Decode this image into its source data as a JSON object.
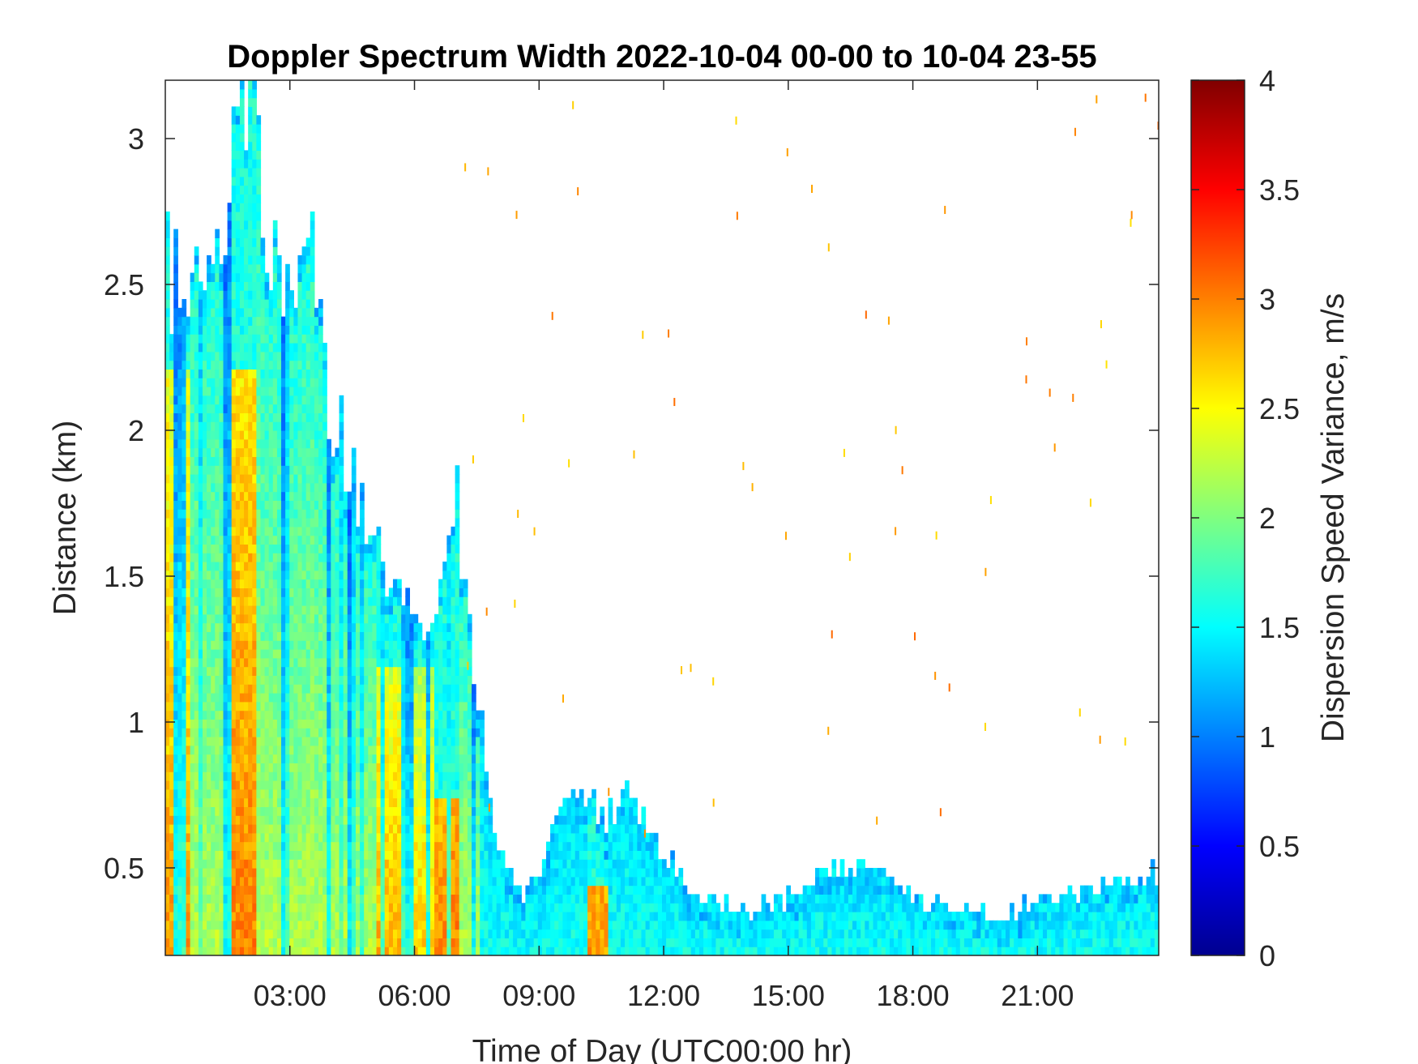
{
  "chart_data": {
    "type": "heatmap",
    "title": "Doppler Spectrum Width 2022-10-04 00-00 to 10-04 23-55",
    "xlabel": "Time of Day (UTC00:00 hr)",
    "ylabel": "Distance (km)",
    "colorbar_label": "Dispersion Speed Variance, m/s",
    "x_unit": "hours",
    "xlim": [
      0,
      23.92
    ],
    "ylim": [
      0.2,
      3.2
    ],
    "clim": [
      0,
      4
    ],
    "colormap": "jet",
    "x_ticks": [
      {
        "value": 3,
        "label": "03:00"
      },
      {
        "value": 6,
        "label": "06:00"
      },
      {
        "value": 9,
        "label": "09:00"
      },
      {
        "value": 12,
        "label": "12:00"
      },
      {
        "value": 15,
        "label": "15:00"
      },
      {
        "value": 18,
        "label": "18:00"
      },
      {
        "value": 21,
        "label": "21:00"
      }
    ],
    "y_ticks": [
      {
        "value": 0.5,
        "label": "0.5"
      },
      {
        "value": 1,
        "label": "1"
      },
      {
        "value": 1.5,
        "label": "1.5"
      },
      {
        "value": 2,
        "label": "2"
      },
      {
        "value": 2.5,
        "label": "2.5"
      },
      {
        "value": 3,
        "label": "3"
      }
    ],
    "c_ticks": [
      {
        "value": 0,
        "label": "0"
      },
      {
        "value": 0.5,
        "label": "0.5"
      },
      {
        "value": 1,
        "label": "1"
      },
      {
        "value": 1.5,
        "label": "1.5"
      },
      {
        "value": 2,
        "label": "2"
      },
      {
        "value": 2.5,
        "label": "2.5"
      },
      {
        "value": 3,
        "label": "3"
      },
      {
        "value": 3.5,
        "label": "3.5"
      },
      {
        "value": 4,
        "label": "4"
      }
    ],
    "top_envelope_km": [
      [
        0.0,
        2.55
      ],
      [
        0.5,
        2.45
      ],
      [
        1.0,
        2.45
      ],
      [
        1.5,
        2.75
      ],
      [
        2.0,
        3.2
      ],
      [
        2.5,
        2.5
      ],
      [
        3.0,
        2.5
      ],
      [
        3.5,
        2.6
      ],
      [
        4.0,
        2.1
      ],
      [
        4.5,
        1.8
      ],
      [
        5.0,
        1.6
      ],
      [
        5.5,
        1.55
      ],
      [
        6.0,
        1.45
      ],
      [
        6.5,
        1.25
      ],
      [
        7.0,
        1.8
      ],
      [
        7.2,
        1.5
      ],
      [
        7.5,
        1.1
      ],
      [
        8.0,
        0.6
      ],
      [
        8.5,
        0.4
      ],
      [
        9.0,
        0.5
      ],
      [
        9.5,
        0.7
      ],
      [
        10.0,
        0.8
      ],
      [
        10.5,
        0.65
      ],
      [
        11.0,
        0.75
      ],
      [
        11.5,
        0.65
      ],
      [
        12.0,
        0.55
      ],
      [
        12.5,
        0.45
      ],
      [
        13.0,
        0.4
      ],
      [
        14.0,
        0.35
      ],
      [
        15.0,
        0.4
      ],
      [
        16.0,
        0.48
      ],
      [
        17.0,
        0.52
      ],
      [
        18.0,
        0.4
      ],
      [
        19.0,
        0.35
      ],
      [
        20.0,
        0.33
      ],
      [
        21.0,
        0.38
      ],
      [
        22.0,
        0.42
      ],
      [
        23.0,
        0.45
      ],
      [
        23.92,
        0.48
      ]
    ],
    "high_variance_columns": [
      {
        "x": 0.3,
        "value": 2.9,
        "top_km": 2.2
      },
      {
        "x": 1.9,
        "value": 3.0,
        "top_km": 2.2
      },
      {
        "x": 5.4,
        "value": 2.8,
        "top_km": 1.2
      },
      {
        "x": 6.3,
        "value": 2.7,
        "top_km": 1.2
      },
      {
        "x": 6.8,
        "value": 3.0,
        "top_km": 0.75
      },
      {
        "x": 10.4,
        "value": 2.9,
        "top_km": 0.45
      }
    ]
  }
}
